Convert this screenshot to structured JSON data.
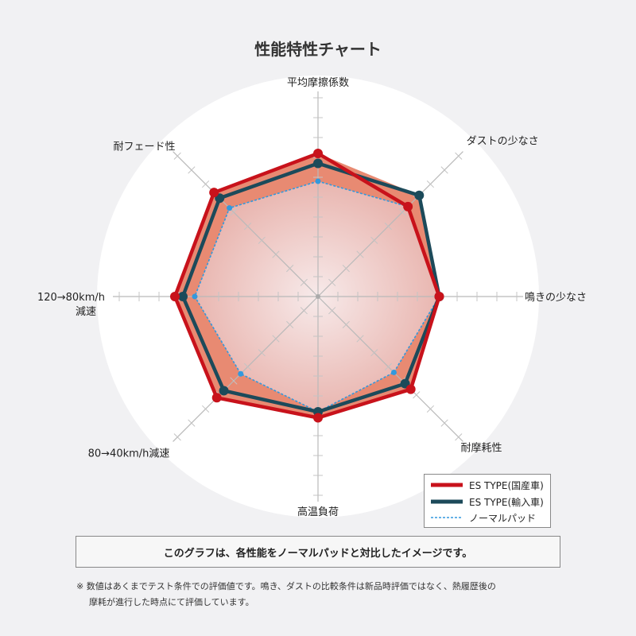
{
  "title": "性能特性チャート",
  "chart_data": {
    "type": "radar",
    "axes": [
      {
        "label": "平均摩擦係数"
      },
      {
        "label": "ダストの少なさ"
      },
      {
        "label": "鳴きの少なさ"
      },
      {
        "label": "耐摩耗性"
      },
      {
        "label": "高温負荷"
      },
      {
        "label": "80→40km/h減速"
      },
      {
        "label": "120→80km/h",
        "label2": "減速"
      },
      {
        "label": "耐フェード性"
      }
    ],
    "series": [
      {
        "name": "ES TYPE(国産車)",
        "color": "#c8121b",
        "style": "solid",
        "values": [
          7.2,
          6.4,
          6.1,
          6.6,
          6.1,
          7.2,
          7.2,
          7.4
        ]
      },
      {
        "name": "ES TYPE(輸入車)",
        "color": "#1c4a5a",
        "style": "solid",
        "values": [
          6.7,
          7.2,
          6.1,
          6.2,
          5.8,
          6.7,
          6.8,
          7.0
        ]
      },
      {
        "name": "ノーマルパッド",
        "color": "#3399dd",
        "style": "dashed",
        "values": [
          5.8,
          6.4,
          6.1,
          5.4,
          5.8,
          5.5,
          6.2,
          6.3
        ]
      }
    ],
    "rmax": 10,
    "ticks_per_axis": 10,
    "grid": true,
    "legend_position": "bottom-right"
  },
  "note": "このグラフは、各性能をノーマルパッドと対比したイメージです。",
  "footnote": {
    "line1": "※ 数値はあくまでテスト条件での評価値です。鳴き、ダストの比較条件は新品時評価ではなく、熱履歴後の",
    "line2": "摩耗が進行した時点にて評価しています。"
  }
}
